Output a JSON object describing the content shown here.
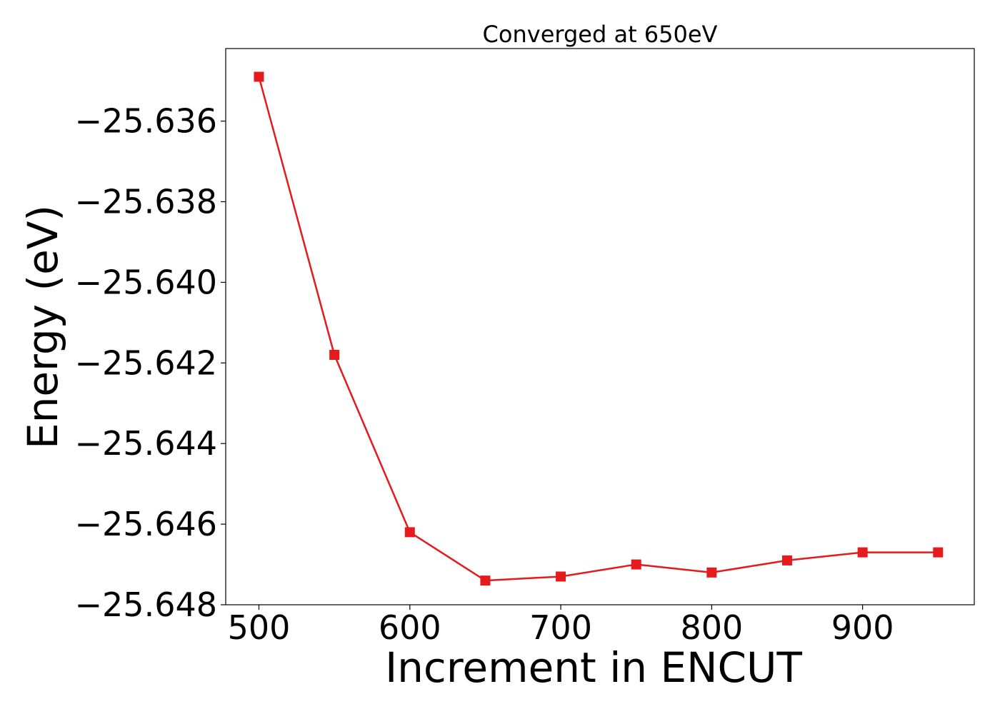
{
  "chart_data": {
    "type": "line",
    "title": "Converged at 650eV",
    "xlabel": "Increment in ENCUT",
    "ylabel": "Energy (eV)",
    "xlim": [
      478,
      974
    ],
    "ylim": [
      -25.648,
      -25.6342
    ],
    "xticks": [
      500,
      600,
      700,
      800,
      900
    ],
    "xtick_labels": [
      "500",
      "600",
      "700",
      "800",
      "900"
    ],
    "yticks": [
      -25.636,
      -25.638,
      -25.64,
      -25.642,
      -25.644,
      -25.646,
      -25.648
    ],
    "ytick_labels": [
      "−25.636",
      "−25.638",
      "−25.640",
      "−25.642",
      "−25.644",
      "−25.646",
      "−25.648"
    ],
    "grid": false,
    "series": [
      {
        "color": "#e41a1c",
        "marker": "square",
        "x": [
          500,
          550,
          600,
          650,
          700,
          750,
          800,
          850,
          900,
          950
        ],
        "y": [
          -25.6349,
          -25.6418,
          -25.6462,
          -25.6474,
          -25.6473,
          -25.647,
          -25.6472,
          -25.6469,
          -25.6467,
          -25.6467
        ]
      }
    ]
  }
}
